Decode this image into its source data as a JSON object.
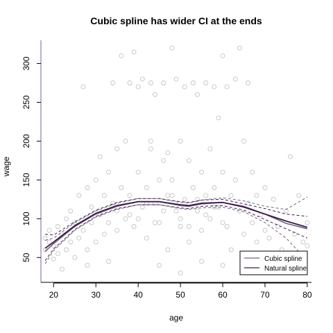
{
  "chart_data": {
    "type": "scatter",
    "title": "Cubic spline has wider CI at the ends",
    "xlabel": "age",
    "ylabel": "wage",
    "xlim": [
      17,
      81
    ],
    "ylim": [
      18,
      330
    ],
    "xticks": [
      20,
      30,
      40,
      50,
      60,
      70,
      80
    ],
    "yticks": [
      50,
      100,
      150,
      200,
      250,
      300
    ],
    "grid": false,
    "legend_position": "bottom-right",
    "colors": {
      "points": "#c4c1c7",
      "cubic": "#6f6378",
      "natural": "#3b1a4c",
      "axis_frame": "#7a5fa5"
    },
    "scatter_summary": {
      "x_range": [
        18,
        80
      ],
      "main_cluster_range": [
        40,
        200
      ],
      "upper_cluster_range": [
        260,
        320
      ]
    },
    "scatter_points": [
      [
        18,
        75
      ],
      [
        18,
        60
      ],
      [
        19,
        70
      ],
      [
        19,
        85
      ],
      [
        20,
        48
      ],
      [
        20,
        65
      ],
      [
        21,
        90
      ],
      [
        21,
        55
      ],
      [
        22,
        35
      ],
      [
        22,
        80
      ],
      [
        23,
        100
      ],
      [
        23,
        60
      ],
      [
        24,
        110
      ],
      [
        24,
        70
      ],
      [
        25,
        50
      ],
      [
        25,
        95
      ],
      [
        26,
        130
      ],
      [
        26,
        75
      ],
      [
        27,
        270
      ],
      [
        27,
        85
      ],
      [
        28,
        140
      ],
      [
        28,
        60
      ],
      [
        29,
        115
      ],
      [
        29,
        95
      ],
      [
        30,
        150
      ],
      [
        30,
        70
      ],
      [
        31,
        105
      ],
      [
        31,
        180
      ],
      [
        32,
        130
      ],
      [
        32,
        80
      ],
      [
        33,
        160
      ],
      [
        33,
        95
      ],
      [
        34,
        275
      ],
      [
        34,
        120
      ],
      [
        35,
        190
      ],
      [
        35,
        110
      ],
      [
        36,
        310
      ],
      [
        36,
        140
      ],
      [
        37,
        100
      ],
      [
        37,
        200
      ],
      [
        38,
        275
      ],
      [
        38,
        130
      ],
      [
        39,
        315
      ],
      [
        39,
        90
      ],
      [
        40,
        270
      ],
      [
        40,
        160
      ],
      [
        41,
        115
      ],
      [
        41,
        280
      ],
      [
        42,
        140
      ],
      [
        42,
        75
      ],
      [
        43,
        275
      ],
      [
        43,
        200
      ],
      [
        44,
        120
      ],
      [
        44,
        260
      ],
      [
        45,
        150
      ],
      [
        45,
        95
      ],
      [
        46,
        275
      ],
      [
        46,
        175
      ],
      [
        47,
        130
      ],
      [
        47,
        60
      ],
      [
        48,
        320
      ],
      [
        48,
        150
      ],
      [
        49,
        110
      ],
      [
        49,
        280
      ],
      [
        50,
        200
      ],
      [
        50,
        90
      ],
      [
        51,
        270
      ],
      [
        51,
        125
      ],
      [
        52,
        175
      ],
      [
        52,
        70
      ],
      [
        53,
        275
      ],
      [
        53,
        140
      ],
      [
        54,
        110
      ],
      [
        54,
        260
      ],
      [
        55,
        160
      ],
      [
        55,
        85
      ],
      [
        56,
        275
      ],
      [
        56,
        130
      ],
      [
        57,
        190
      ],
      [
        57,
        100
      ],
      [
        58,
        270
      ],
      [
        58,
        140
      ],
      [
        59,
        230
      ],
      [
        59,
        115
      ],
      [
        60,
        310
      ],
      [
        60,
        160
      ],
      [
        61,
        90
      ],
      [
        61,
        270
      ],
      [
        62,
        130
      ],
      [
        62,
        60
      ],
      [
        63,
        280
      ],
      [
        63,
        150
      ],
      [
        64,
        320
      ],
      [
        64,
        110
      ],
      [
        65,
        200
      ],
      [
        65,
        80
      ],
      [
        66,
        275
      ],
      [
        66,
        120
      ],
      [
        67,
        95
      ],
      [
        67,
        160
      ],
      [
        68,
        70
      ],
      [
        68,
        130
      ],
      [
        69,
        105
      ],
      [
        69,
        55
      ],
      [
        70,
        140
      ],
      [
        70,
        85
      ],
      [
        71,
        75
      ],
      [
        72,
        125
      ],
      [
        73,
        90
      ],
      [
        74,
        60
      ],
      [
        75,
        110
      ],
      [
        76,
        180
      ],
      [
        77,
        80
      ],
      [
        78,
        130
      ],
      [
        79,
        70
      ],
      [
        80,
        95
      ],
      [
        80,
        65
      ],
      [
        40,
        100
      ],
      [
        42,
        120
      ],
      [
        44,
        95
      ],
      [
        46,
        110
      ],
      [
        48,
        130
      ],
      [
        50,
        100
      ],
      [
        52,
        90
      ],
      [
        54,
        125
      ],
      [
        56,
        105
      ],
      [
        58,
        115
      ],
      [
        60,
        95
      ],
      [
        35,
        85
      ],
      [
        38,
        105
      ],
      [
        55,
        45
      ],
      [
        45,
        40
      ],
      [
        60,
        40
      ],
      [
        33,
        45
      ],
      [
        50,
        30
      ],
      [
        65,
        50
      ],
      [
        70,
        45
      ],
      [
        28,
        40
      ],
      [
        43,
        190
      ],
      [
        47,
        185
      ]
    ],
    "series": [
      {
        "name": "Cubic spline",
        "x": [
          18,
          20,
          25,
          30,
          35,
          40,
          45,
          50,
          52,
          55,
          60,
          65,
          70,
          75,
          80
        ],
        "fit": [
          58,
          68,
          90,
          106,
          116,
          122,
          122,
          117,
          116,
          119,
          121,
          116,
          106,
          94,
          87
        ],
        "upper": [
          72,
          75,
          95,
          110,
          120,
          126,
          126,
          121,
          120,
          124,
          127,
          123,
          116,
          112,
          128
        ],
        "lower": [
          42,
          59,
          85,
          102,
          112,
          118,
          118,
          113,
          112,
          114,
          115,
          109,
          95,
          75,
          46
        ]
      },
      {
        "name": "Natural spline",
        "x": [
          18,
          20,
          25,
          30,
          35,
          40,
          45,
          50,
          52,
          55,
          60,
          65,
          70,
          75,
          80
        ],
        "fit": [
          62,
          70,
          91,
          107,
          117,
          122,
          122,
          118,
          117,
          120,
          121,
          115,
          106,
          97,
          89
        ],
        "upper": [
          80,
          79,
          96,
          111,
          121,
          126,
          126,
          122,
          121,
          124,
          125,
          119,
          113,
          106,
          103
        ],
        "lower": [
          46,
          61,
          86,
          103,
          113,
          118,
          118,
          114,
          113,
          116,
          117,
          111,
          99,
          87,
          75
        ]
      }
    ]
  }
}
